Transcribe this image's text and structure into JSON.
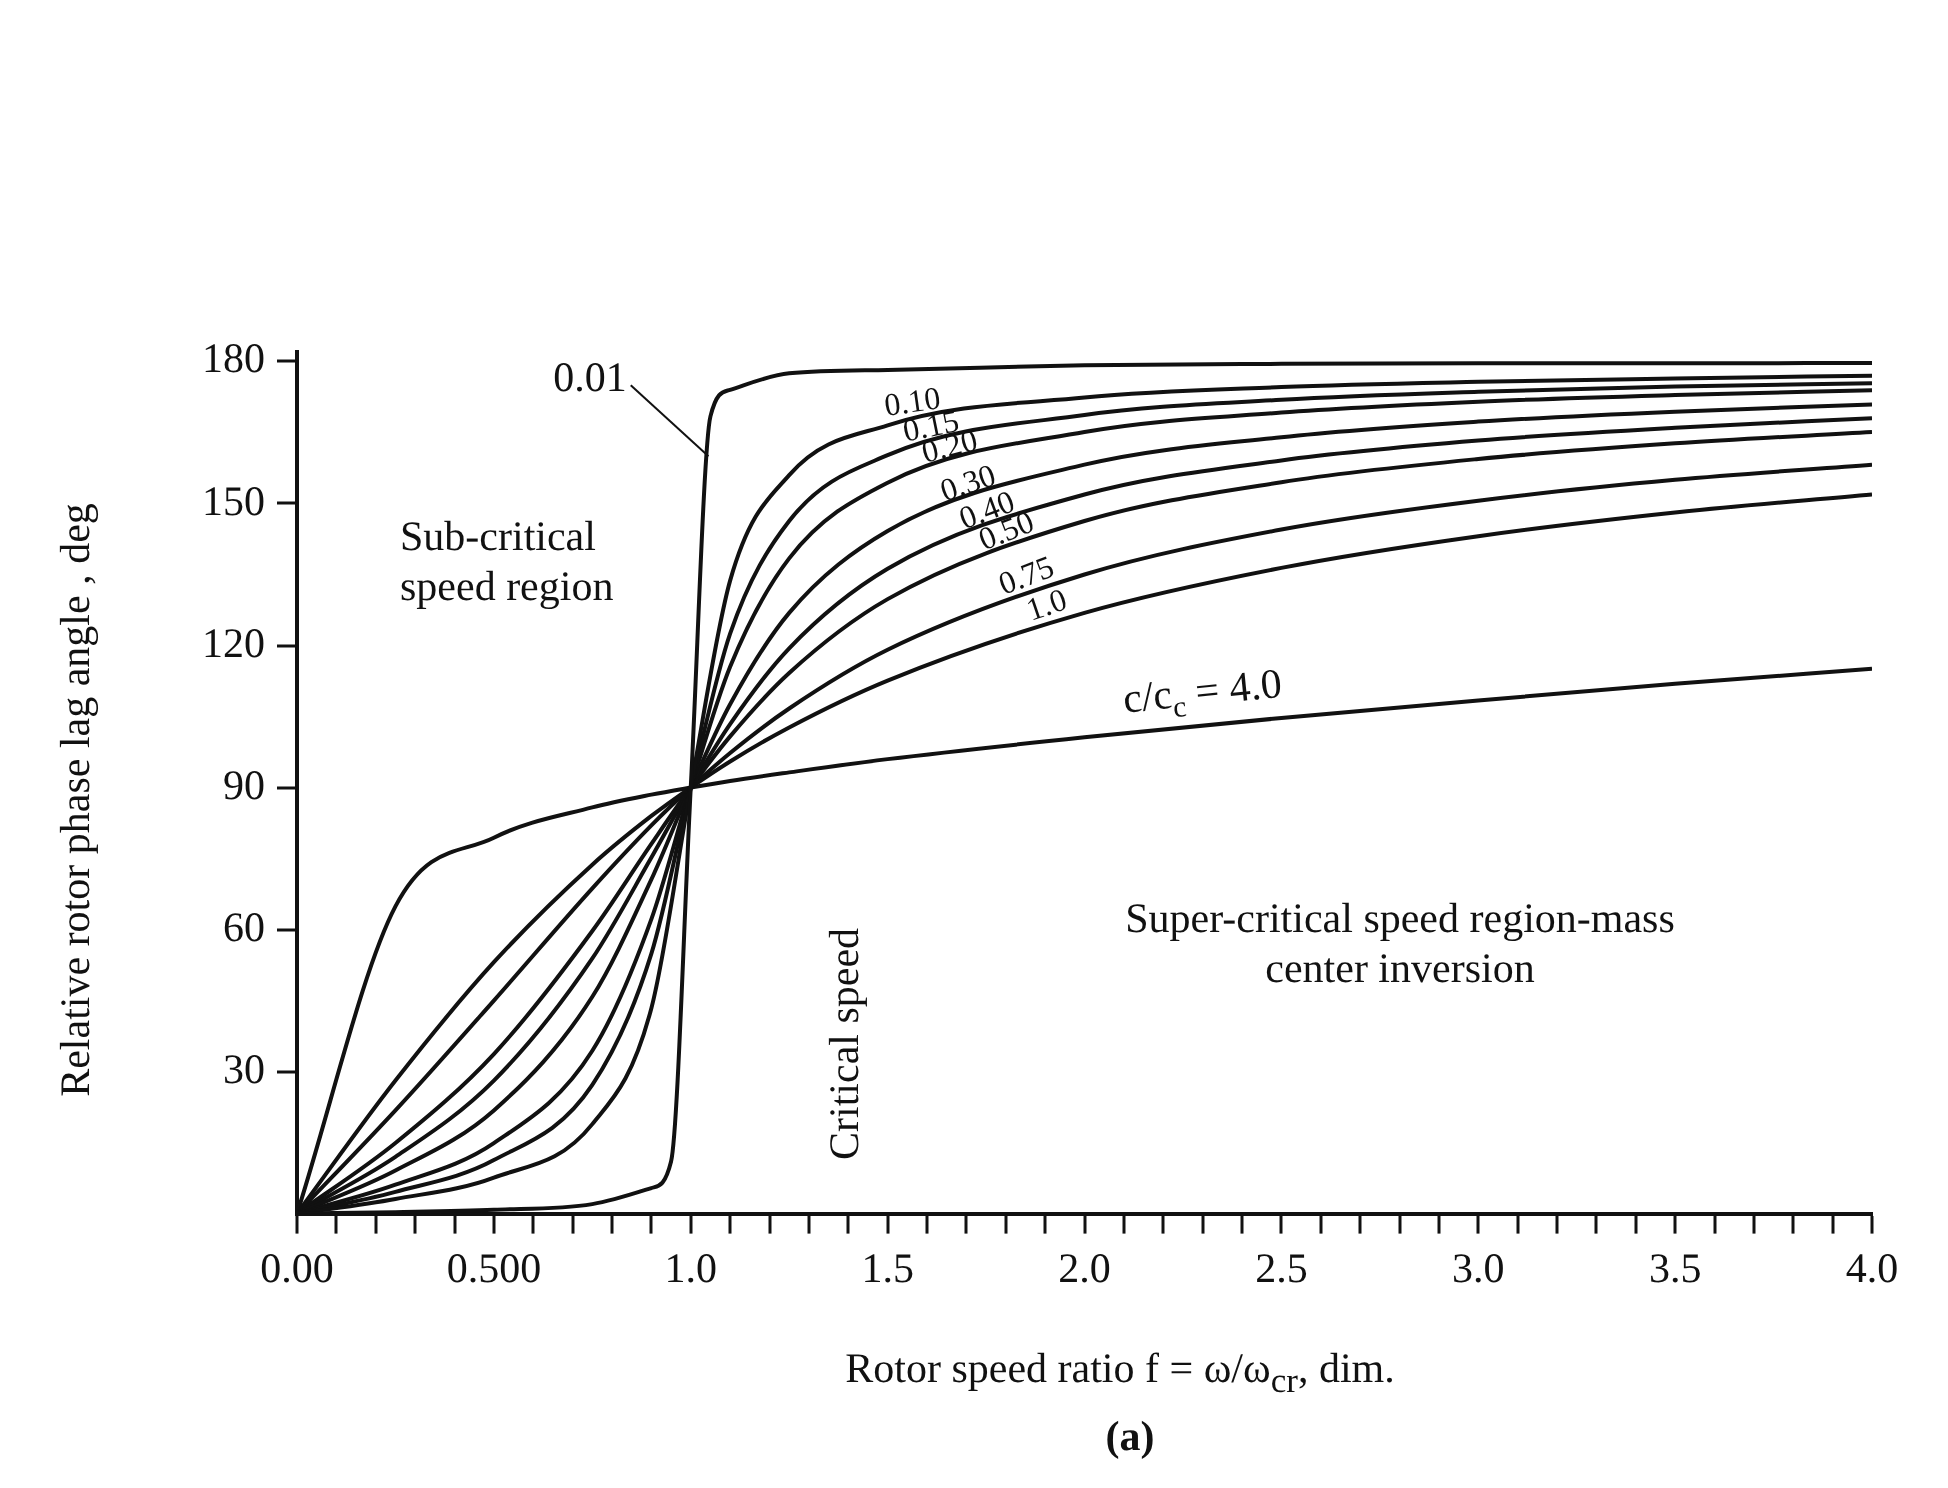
{
  "chart_data": {
    "type": "line",
    "xlabel": "Rotor speed ratio f = ω/ω$_{cr}$, dim.",
    "ylabel": "Relative rotor phase lag angle , deg",
    "x": [
      0,
      0.25,
      0.5,
      0.75,
      0.9,
      1,
      1.1,
      1.25,
      1.5,
      2,
      2.5,
      3,
      3.5,
      4
    ],
    "series": [
      {
        "name": "0.01",
        "color": "#111111",
        "x": [
          0,
          0.25,
          0.5,
          0.75,
          0.9,
          0.95,
          1,
          1.05,
          1.1,
          1.25,
          1.5,
          2,
          2.5,
          3,
          3.5,
          4
        ],
        "values": [
          0,
          0.3,
          0.8,
          2,
          5.4,
          11,
          90,
          168.4,
          174,
          177.5,
          178.2,
          179.2,
          179.5,
          179.6,
          179.6,
          179.7
        ]
      },
      {
        "name": "0.10",
        "color": "#111111",
        "values": [
          0,
          3.1,
          7.6,
          18.9,
          43.4,
          90,
          133.7,
          156,
          166.5,
          172.4,
          174.6,
          175.7,
          176.4,
          177
        ]
      },
      {
        "name": "0.15",
        "color": "#111111",
        "values": [
          0,
          4.6,
          11.3,
          27.2,
          54.9,
          90,
          122.5,
          146.3,
          160.2,
          168.7,
          171.9,
          173.6,
          174.7,
          175.4
        ]
      },
      {
        "name": "0.20",
        "color": "#111111",
        "values": [
          0,
          6.1,
          14.9,
          34.4,
          62.2,
          90,
          115.5,
          138.4,
          154.4,
          165.1,
          169.2,
          171.5,
          172.9,
          173.9
        ]
      },
      {
        "name": "0.30",
        "color": "#111111",
        "values": [
          0,
          9.1,
          21.8,
          45.8,
          70.6,
          90,
          107.6,
          126.9,
          144.2,
          158.2,
          164,
          167.3,
          169.4,
          170.9
        ]
      },
      {
        "name": "0.40",
        "color": "#111111",
        "values": [
          0,
          12,
          28.1,
          53.9,
          75.2,
          90,
          103.4,
          119.4,
          136.2,
          151.9,
          159.1,
          163.3,
          166,
          168
        ]
      },
      {
        "name": "0.50",
        "color": "#111111",
        "values": [
          0,
          14.9,
          33.7,
          59.7,
          78.1,
          90,
          100.8,
          114.2,
          129.8,
          146.3,
          154.5,
          159.4,
          162.7,
          165.1
        ]
      },
      {
        "name": "0.75",
        "color": "#111111",
        "values": [
          0,
          21.8,
          45,
          68.7,
          82,
          90,
          97.3,
          106.7,
          119.1,
          135,
          144.5,
          150.6,
          155,
          158.2
        ]
      },
      {
        "name": "1.0",
        "color": "#111111",
        "values": [
          0,
          28.1,
          53.1,
          73.7,
          84,
          90,
          95.5,
          102.7,
          112.6,
          126.9,
          136.4,
          143.1,
          148.1,
          151.9
        ]
      },
      {
        "name": "c/c$_{c}$ = 4.0",
        "color": "#111111",
        "values": [
          0,
          64.9,
          79.4,
          85.8,
          88.5,
          90,
          91.4,
          93.2,
          96,
          100.6,
          104.7,
          108.4,
          111.9,
          115.1
        ]
      }
    ],
    "xlim": [
      0,
      4
    ],
    "xticks": [
      {
        "value": 0,
        "label": "0.00"
      },
      {
        "value": 0.1,
        "label": null
      },
      {
        "value": 0.2,
        "label": null
      },
      {
        "value": 0.3,
        "label": null
      },
      {
        "value": 0.4,
        "label": null
      },
      {
        "value": 0.5,
        "label": "0.500"
      },
      {
        "value": 0.6,
        "label": null
      },
      {
        "value": 0.7,
        "label": null
      },
      {
        "value": 0.8,
        "label": null
      },
      {
        "value": 0.9,
        "label": null
      },
      {
        "value": 1,
        "label": "1.0"
      },
      {
        "value": 1.1,
        "label": null
      },
      {
        "value": 1.2,
        "label": null
      },
      {
        "value": 1.3,
        "label": null
      },
      {
        "value": 1.4,
        "label": null
      },
      {
        "value": 1.5,
        "label": "1.5"
      },
      {
        "value": 1.6,
        "label": null
      },
      {
        "value": 1.7,
        "label": null
      },
      {
        "value": 1.8,
        "label": null
      },
      {
        "value": 1.9,
        "label": null
      },
      {
        "value": 2,
        "label": "2.0"
      },
      {
        "value": 2.1,
        "label": null
      },
      {
        "value": 2.2,
        "label": null
      },
      {
        "value": 2.3,
        "label": null
      },
      {
        "value": 2.4,
        "label": null
      },
      {
        "value": 2.5,
        "label": "2.5"
      },
      {
        "value": 2.6,
        "label": null
      },
      {
        "value": 2.7,
        "label": null
      },
      {
        "value": 2.8,
        "label": null
      },
      {
        "value": 2.9,
        "label": null
      },
      {
        "value": 3,
        "label": "3.0"
      },
      {
        "value": 3.1,
        "label": null
      },
      {
        "value": 3.2,
        "label": null
      },
      {
        "value": 3.3,
        "label": null
      },
      {
        "value": 3.4,
        "label": null
      },
      {
        "value": 3.5,
        "label": "3.5"
      },
      {
        "value": 3.6,
        "label": null
      },
      {
        "value": 3.7,
        "label": null
      },
      {
        "value": 3.8,
        "label": null
      },
      {
        "value": 3.9,
        "label": null
      },
      {
        "value": 4,
        "label": "4.0"
      }
    ],
    "ylim": [
      0,
      182
    ],
    "yticks": [
      30,
      60,
      90,
      120,
      150,
      180
    ],
    "grid": false,
    "legend": false,
    "marker": "none",
    "line_style": "solid",
    "annotations": [
      "Sub-critical speed region",
      "Critical speed",
      "Super-critical speed region-mass center inversion",
      "(a)"
    ]
  }
}
